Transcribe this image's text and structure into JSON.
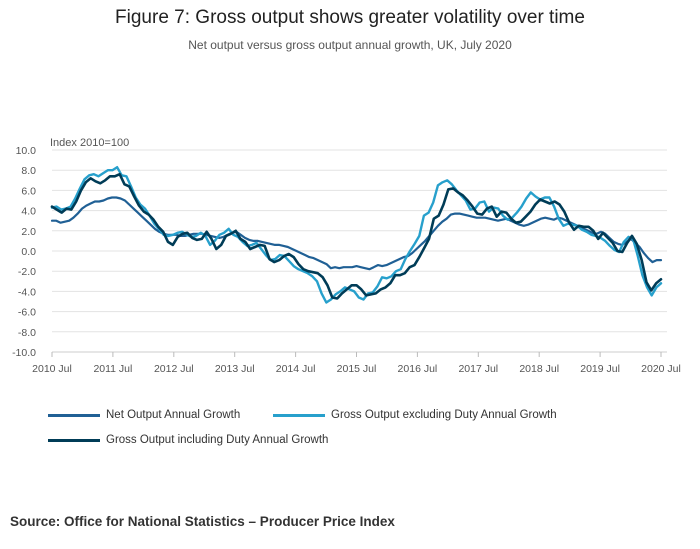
{
  "title": "Figure 7: Gross output shows greater volatility over time",
  "subtitle": "Net output versus gross output annual growth, UK, July 2020",
  "source": "Source: Office for National Statistics – Producer Price Index",
  "chart_data": {
    "type": "line",
    "ylabel": "Index 2010=100",
    "xlabel": "",
    "ylim": [
      -10,
      10
    ],
    "y_ticks": [
      "10.0",
      "8.0",
      "6.0",
      "4.0",
      "2.0",
      "0.0",
      "-2.0",
      "-4.0",
      "-6.0",
      "-8.0",
      "-10.0"
    ],
    "x_ticks": [
      "2010 Jul",
      "2011 Jul",
      "2012 Jul",
      "2013 Jul",
      "2014 Jul",
      "2015 Jul",
      "2016 Jul",
      "2017 Jul",
      "2018 Jul",
      "2019 Jul",
      "2020 Jul"
    ],
    "x_start": "2010 Jul",
    "x_end": "2020 Jul",
    "grid": true,
    "legend_position": "bottom",
    "colors": {
      "net": "#206095",
      "gross_excl": "#27a0cc",
      "gross_incl": "#003c57"
    },
    "series": [
      {
        "name": "Net Output Annual Growth",
        "key": "net",
        "values": [
          3.0,
          3.0,
          2.8,
          2.9,
          3.0,
          3.3,
          3.7,
          4.2,
          4.5,
          4.7,
          4.9,
          4.9,
          5.0,
          5.2,
          5.3,
          5.3,
          5.2,
          5.0,
          4.6,
          4.2,
          3.8,
          3.4,
          3.0,
          2.6,
          2.2,
          1.9,
          1.7,
          1.6,
          1.6,
          1.6,
          1.5,
          1.5,
          1.6,
          1.7,
          1.7,
          1.7,
          1.6,
          1.5,
          1.4,
          1.3,
          1.4,
          1.6,
          1.8,
          1.9,
          1.6,
          1.3,
          1.1,
          1.0,
          1.0,
          0.9,
          0.8,
          0.7,
          0.6,
          0.6,
          0.5,
          0.4,
          0.2,
          0.0,
          -0.2,
          -0.4,
          -0.6,
          -0.7,
          -0.9,
          -1.1,
          -1.3,
          -1.7,
          -1.6,
          -1.7,
          -1.6,
          -1.6,
          -1.6,
          -1.5,
          -1.6,
          -1.7,
          -1.8,
          -1.6,
          -1.4,
          -1.5,
          -1.4,
          -1.2,
          -1.0,
          -0.8,
          -0.6,
          -0.5,
          -0.2,
          0.2,
          0.6,
          1.0,
          1.5,
          2.0,
          2.5,
          2.9,
          3.2,
          3.6,
          3.7,
          3.7,
          3.6,
          3.5,
          3.4,
          3.3,
          3.3,
          3.3,
          3.2,
          3.1,
          3.0,
          3.1,
          3.2,
          3.0,
          2.8,
          2.6,
          2.5,
          2.6,
          2.8,
          3.0,
          3.2,
          3.3,
          3.2,
          3.1,
          3.3,
          3.2,
          3.0,
          2.8,
          2.6,
          2.4,
          2.2,
          2.0,
          1.8,
          1.7,
          1.9,
          1.7,
          1.3,
          0.9,
          0.7,
          0.6,
          0.9,
          1.2,
          0.8,
          0.4,
          -0.2,
          -0.7,
          -1.1,
          -0.9,
          -0.9
        ]
      },
      {
        "name": "Gross Output excluding Duty Annual Growth",
        "key": "gross_excl",
        "values": [
          4.3,
          4.4,
          4.1,
          4.2,
          4.4,
          5.2,
          6.2,
          7.1,
          7.5,
          7.6,
          7.4,
          7.7,
          8.0,
          8.0,
          8.3,
          7.5,
          7.4,
          6.4,
          5.3,
          4.6,
          4.2,
          3.5,
          2.7,
          2.2,
          1.6,
          1.5,
          1.6,
          1.8,
          1.9,
          1.6,
          1.4,
          1.5,
          1.8,
          1.5,
          0.6,
          1.0,
          1.6,
          1.8,
          2.2,
          1.6,
          1.4,
          0.9,
          0.5,
          0.6,
          0.8,
          0.2,
          -0.4,
          -0.9,
          -0.8,
          -0.4,
          -0.5,
          -1.0,
          -1.5,
          -1.8,
          -2.0,
          -2.2,
          -2.5,
          -3.0,
          -4.2,
          -5.1,
          -4.8,
          -4.3,
          -4.0,
          -3.6,
          -3.8,
          -4.0,
          -4.6,
          -4.8,
          -4.2,
          -4.1,
          -3.5,
          -2.6,
          -2.7,
          -2.5,
          -2.0,
          -1.8,
          -0.8,
          0.0,
          0.7,
          1.5,
          3.5,
          3.8,
          4.8,
          6.5,
          6.8,
          7.0,
          6.6,
          6.0,
          5.5,
          5.0,
          4.1,
          4.2,
          4.8,
          4.9,
          3.9,
          4.3,
          4.2,
          3.5,
          3.1,
          3.3,
          3.8,
          4.4,
          5.2,
          5.8,
          5.4,
          5.1,
          5.3,
          5.3,
          4.4,
          3.2,
          2.5,
          2.7,
          2.6,
          2.5,
          2.1,
          1.9,
          1.6,
          1.5,
          1.3,
          1.0,
          0.5,
          0.1,
          -0.1,
          0.9,
          1.4,
          1.2,
          -0.5,
          -2.4,
          -3.6,
          -4.4,
          -3.6,
          -3.2
        ]
      },
      {
        "name": "Gross Output including Duty Annual Growth",
        "key": "gross_incl",
        "values": [
          4.4,
          4.1,
          3.8,
          4.2,
          4.1,
          4.9,
          6.0,
          6.8,
          7.2,
          6.9,
          6.7,
          7.0,
          7.4,
          7.4,
          7.6,
          6.6,
          6.4,
          5.4,
          4.5,
          3.9,
          3.6,
          3.1,
          2.4,
          1.9,
          0.9,
          0.6,
          1.4,
          1.7,
          1.8,
          1.3,
          1.1,
          1.2,
          1.9,
          1.2,
          0.2,
          0.6,
          1.5,
          1.7,
          2.0,
          1.2,
          0.9,
          0.2,
          0.4,
          0.6,
          0.5,
          -0.8,
          -1.1,
          -0.9,
          -0.5,
          -0.3,
          -0.6,
          -1.3,
          -1.8,
          -2.0,
          -2.1,
          -2.2,
          -2.6,
          -3.4,
          -4.6,
          -4.7,
          -4.2,
          -3.8,
          -3.4,
          -3.4,
          -3.8,
          -4.4,
          -4.3,
          -4.2,
          -3.8,
          -3.6,
          -3.2,
          -2.4,
          -2.4,
          -2.2,
          -1.6,
          -1.4,
          -0.6,
          0.3,
          1.2,
          3.2,
          3.5,
          4.6,
          6.1,
          6.2,
          5.8,
          5.5,
          5.0,
          4.4,
          3.7,
          3.6,
          4.2,
          4.4,
          3.4,
          3.9,
          3.8,
          3.2,
          2.8,
          2.9,
          3.4,
          3.9,
          4.6,
          5.1,
          4.9,
          4.7,
          4.9,
          4.6,
          3.9,
          2.8,
          2.1,
          2.5,
          2.4,
          2.4,
          2.0,
          1.2,
          1.8,
          1.3,
          0.8,
          0.0,
          -0.1,
          0.8,
          1.5,
          0.7,
          -0.9,
          -3.1,
          -3.9,
          -3.2,
          -2.8
        ]
      }
    ]
  }
}
